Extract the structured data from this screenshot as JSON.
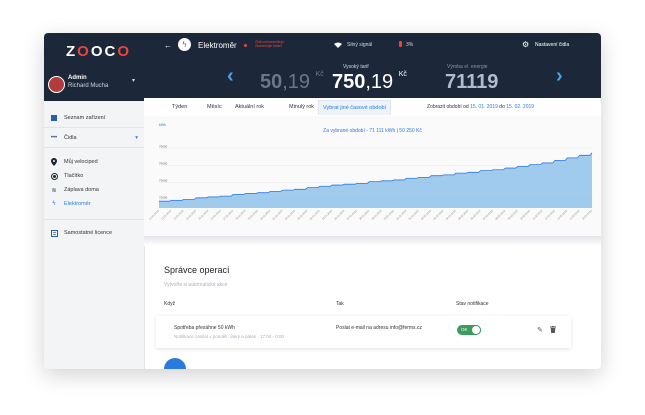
{
  "app": {
    "logo": "ZOOCO"
  },
  "user": {
    "role": "Admin",
    "name": "Richard Mucha"
  },
  "sidebar": {
    "items": [
      {
        "label": "Seznam zařízení",
        "icon": "grid-icon"
      },
      {
        "label": "Čidla",
        "icon": "dots-icon"
      }
    ],
    "sub_items": [
      {
        "label": "Můj velociped",
        "icon": "location-pin-icon"
      },
      {
        "label": "Tlačítko",
        "icon": "button-icon"
      },
      {
        "label": "Záplava doma",
        "icon": "water-icon"
      },
      {
        "label": "Elektroměr",
        "icon": "bolt-icon",
        "active": true
      }
    ],
    "bottom": {
      "label": "Samostatné licence",
      "icon": "license-icon"
    }
  },
  "header": {
    "device": "Elektroměr",
    "note": "Čidlo nekomunikuje. Zkontrolujte baterii",
    "signal": "Silný signál",
    "battery": "3%",
    "settings": "Nastavení čidla",
    "tariffs": [
      {
        "label": "",
        "value_int": "50",
        "value_dec": ",19",
        "unit": "Kč"
      },
      {
        "label": "Vysoký tarif",
        "value_int": "750",
        "value_dec": ",19",
        "unit": "Kč"
      },
      {
        "label": "Výroba el. energie",
        "value_int": "71119",
        "value_dec": "",
        "unit": ""
      }
    ]
  },
  "tabs": [
    "Týden",
    "Měsíc",
    "Aktuální rok",
    "Minulý rok",
    "Vybrat jiné časové období"
  ],
  "range": {
    "prefix": "Zobrazit období od",
    "from": "15. 01. 2019",
    "mid": "do",
    "to": "15. 02. 2019"
  },
  "colors": {
    "accent": "#2a7be0",
    "dark": "#1c2839",
    "danger": "#e8453c",
    "toggle": "#3a9b5c",
    "chart_fill": "#8fc2ea"
  },
  "chart_data": {
    "type": "area",
    "title": "Za vybrané období - 71 111 kWh | 50 250 Kč",
    "ylabel": "kWh",
    "yticks": [
      "75000",
      "74000",
      "73000",
      "72000"
    ],
    "ylim": [
      71500,
      75500
    ],
    "x": [
      "11.01.2019",
      "12.01.2019",
      "13.01.2019",
      "14.01.2019",
      "15.01.2019",
      "16.01.2019",
      "17.01.2019",
      "18.01.2019",
      "19.01.2019",
      "20.01.2019",
      "21.01.2019",
      "22.01.2019",
      "23.01.2019",
      "24.01.2019",
      "25.01.2019",
      "26.01.2019",
      "27.01.2019",
      "28.01.2019",
      "29.01.2019",
      "30.01.2019",
      "31.01.2019",
      "01.02.2019",
      "02.02.2019",
      "03.02.2019",
      "04.02.2019",
      "05.02.2019",
      "06.02.2019",
      "07.02.2019",
      "08.02.2019",
      "09.02.2019",
      "10.02.2019",
      "11.02.2019",
      "12.02.2019",
      "13.02.2019",
      "14.02.2019",
      "15.02.2019"
    ],
    "values": [
      71900,
      71950,
      72000,
      72100,
      72150,
      72200,
      72300,
      72350,
      72400,
      72480,
      72550,
      72600,
      72700,
      72780,
      72850,
      72900,
      72950,
      73050,
      73100,
      73150,
      73250,
      73300,
      73400,
      73450,
      73550,
      73600,
      73700,
      73750,
      73850,
      73950,
      74050,
      74150,
      74300,
      74450,
      74600,
      74750
    ]
  },
  "ops": {
    "title": "Správce operací",
    "subtitle": "Vytvořte si automatické akce",
    "cols": [
      "Když",
      "Tak",
      "Stav notifikace"
    ],
    "rows": [
      {
        "when": "Spotřeba přesáhne 50 kWh",
        "when_sub": "Notifikace zasílat v pondělí, úterý a pátek · 17:00 - 0:00",
        "then": "Poslat e-mail na adresu info@ferms.cz",
        "toggle": "OK"
      }
    ]
  }
}
